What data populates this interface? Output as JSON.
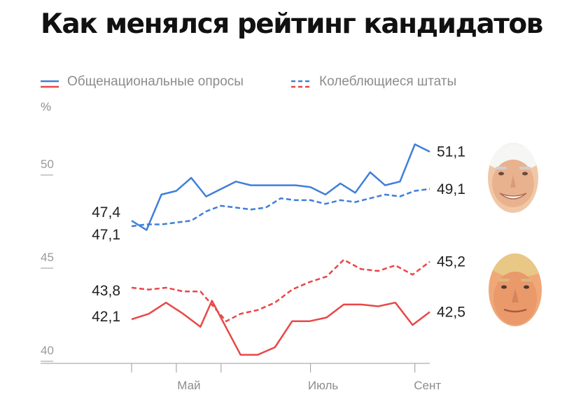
{
  "title": "Как менялся рейтинг кандидатов",
  "colors": {
    "biden": "#3f7fd9",
    "trump": "#e84848",
    "axis": "#9a9a9a"
  },
  "legend": {
    "solid_label": "Общенациональные опросы",
    "dashed_label": "Колеблющиеся штаты"
  },
  "icons": {
    "biden": "biden-portrait-icon",
    "trump": "trump-portrait-icon"
  },
  "chart_data": {
    "type": "line",
    "ylabel": "%",
    "ylim": [
      40,
      52.4
    ],
    "yticks": [
      "40",
      "45",
      "50"
    ],
    "xticks": [
      {
        "label": "Май",
        "index": 3
      },
      {
        "label": "Июль",
        "index": 12
      },
      {
        "label": "Сент",
        "index": 19
      }
    ],
    "grid": false,
    "legend_position": "top",
    "series": [
      {
        "name": "Общенациональные опросы",
        "candidate": "biden",
        "style": "solid",
        "values": [
          47.4,
          46.9,
          48.8,
          49.0,
          49.7,
          48.7,
          49.1,
          49.5,
          49.3,
          49.3,
          49.3,
          49.3,
          49.2,
          48.8,
          49.4,
          48.9,
          50.0,
          49.3,
          49.5,
          51.5,
          51.1
        ],
        "start_label": "47,4",
        "end_label": "51,1"
      },
      {
        "name": "Колеблющиеся штаты",
        "candidate": "biden",
        "style": "dashed",
        "values": [
          47.1,
          47.2,
          47.2,
          47.3,
          47.4,
          47.9,
          48.2,
          48.1,
          48.0,
          48.1,
          48.6,
          48.5,
          48.5,
          48.3,
          48.5,
          48.4,
          48.6,
          48.8,
          48.7,
          49.0,
          49.1
        ],
        "start_label": "47,1",
        "end_label": "49,1"
      },
      {
        "name": "Общенациональные опросы",
        "candidate": "trump",
        "style": "solid",
        "values": [
          42.1,
          42.4,
          43.0,
          42.4,
          41.7,
          43.1,
          40.2,
          40.2,
          40.6,
          42.0,
          42.0,
          42.2,
          42.9,
          42.9,
          42.8,
          43.0,
          41.8,
          42.5
        ],
        "x_index": [
          0,
          1,
          2,
          3,
          4,
          4.67,
          6.33,
          7.33,
          8.33,
          9.33,
          10.33,
          11.33,
          12.33,
          13.33,
          14.33,
          15.33,
          16.33,
          17.33
        ],
        "start_label": "42,1",
        "end_label": "42,5"
      },
      {
        "name": "Колеблющиеся штаты",
        "candidate": "trump",
        "style": "dashed",
        "values": [
          43.8,
          43.7,
          43.8,
          43.6,
          43.6,
          42.0,
          42.4,
          42.6,
          43.0,
          43.7,
          44.1,
          44.4,
          45.3,
          44.8,
          44.7,
          45.0,
          44.5,
          45.2
        ],
        "x_index": [
          0,
          1,
          2,
          3,
          4,
          5.5,
          6.33,
          7.33,
          8.33,
          9.33,
          10.33,
          11.33,
          12.33,
          13.33,
          14.33,
          15.33,
          16.33,
          17.33
        ],
        "start_label": "43,8",
        "end_label": "45,2"
      }
    ]
  }
}
